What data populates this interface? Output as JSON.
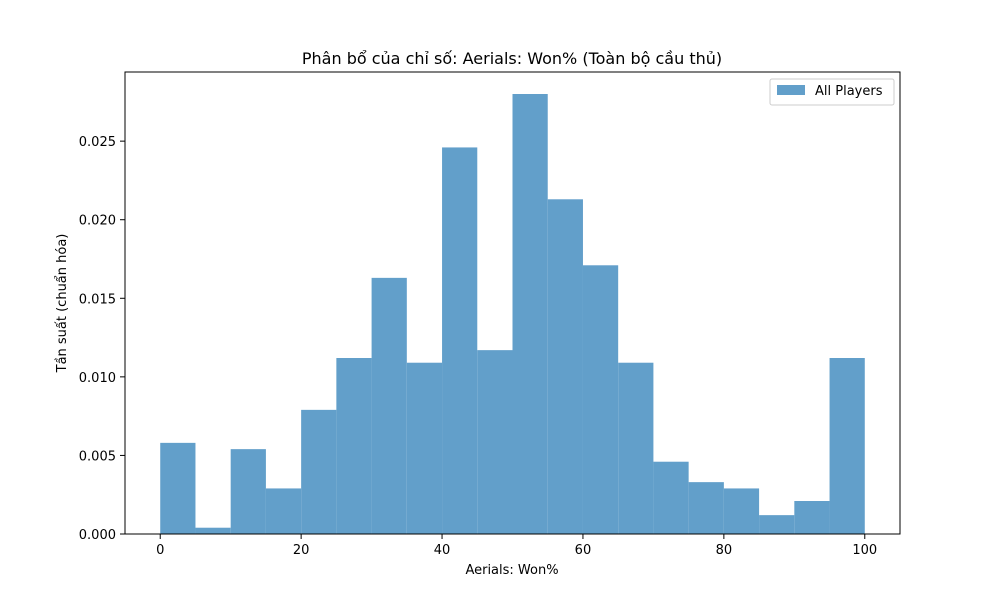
{
  "chart_data": {
    "type": "bar",
    "title": "Phân bổ của chỉ số: Aerials: Won% (Toàn bộ cầu thủ)",
    "xlabel": "Aerials: Won%",
    "ylabel": "Tần suất (chuẩn hóa)",
    "xlim": [
      -5,
      105
    ],
    "ylim": [
      0,
      0.0294
    ],
    "xticks": [
      0,
      20,
      40,
      60,
      80,
      100
    ],
    "xtick_labels": [
      "0",
      "20",
      "40",
      "60",
      "80",
      "100"
    ],
    "yticks": [
      0,
      0.005,
      0.01,
      0.015,
      0.02,
      0.025
    ],
    "ytick_labels": [
      "0.000",
      "0.005",
      "0.010",
      "0.015",
      "0.020",
      "0.025"
    ],
    "bin_edges": [
      0,
      5,
      10,
      15,
      20,
      25,
      30,
      35,
      40,
      45,
      50,
      55,
      60,
      65,
      70,
      75,
      80,
      85,
      90,
      95,
      100
    ],
    "series": [
      {
        "name": "All Players",
        "values": [
          0.0058,
          0.0004,
          0.0054,
          0.0029,
          0.0079,
          0.0112,
          0.0163,
          0.0109,
          0.0246,
          0.0117,
          0.028,
          0.0213,
          0.0171,
          0.0109,
          0.0046,
          0.0033,
          0.0029,
          0.0012,
          0.0021,
          0.0112
        ]
      }
    ],
    "bar_color": "#629fca",
    "legend_position": "top-right",
    "grid": false
  }
}
